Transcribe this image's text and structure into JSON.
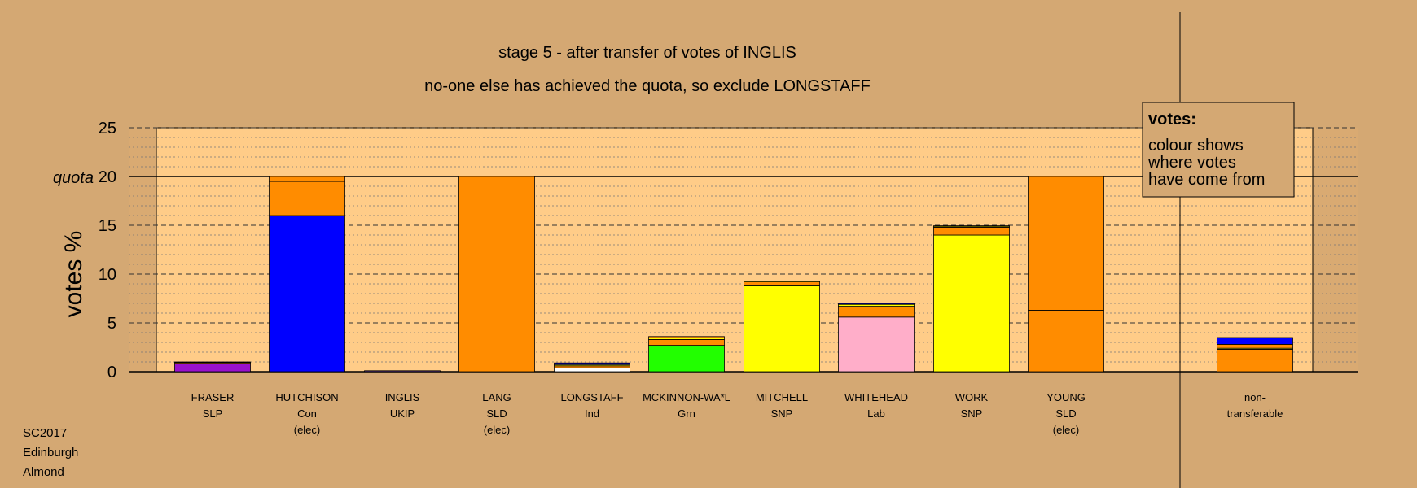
{
  "chart_data": {
    "type": "bar",
    "stacked": true,
    "title": "stage 5 - after transfer of votes of INGLIS",
    "subtitle": "no-one else has achieved the quota, so exclude LONGSTAFF",
    "ylabel": "votes %",
    "ylim": [
      0,
      25
    ],
    "yticks": [
      0,
      5,
      10,
      15,
      20,
      25
    ],
    "quota": 20,
    "quota_label": "quota",
    "grid": true,
    "legend": {
      "title": "votes:",
      "lines": [
        "colour shows",
        "where votes",
        "have come from"
      ],
      "placement": "top-right"
    },
    "footer": [
      "SC2017",
      "Edinburgh",
      "Almond"
    ],
    "colors": {
      "background": "#d4a873",
      "plot_area": "#ffcc88",
      "SLP": "#9911cc",
      "Con": "#0000ff",
      "SLD": "#ff8c00",
      "Ind": "#ffffff",
      "Grn": "#22ff00",
      "SNP": "#ffff00",
      "Lab": "#ffaec9",
      "UKIP": "#6b3fa0"
    },
    "candidates": [
      {
        "name": "FRASER",
        "party": "SLP",
        "status": "",
        "segments": [
          {
            "color": "#9911cc",
            "value": 0.8
          },
          {
            "color": "#ff8c00",
            "value": 0.1
          },
          {
            "color": "#ffff00",
            "value": 0.05
          },
          {
            "color": "#0000ff",
            "value": 0.05
          }
        ]
      },
      {
        "name": "HUTCHISON",
        "party": "Con",
        "status": "(elec)",
        "segments": [
          {
            "color": "#0000ff",
            "value": 16.0
          },
          {
            "color": "#ff8c00",
            "value": 3.5
          },
          {
            "color": "#ff8c00",
            "value": 0.5
          }
        ]
      },
      {
        "name": "INGLIS",
        "party": "UKIP",
        "status": "",
        "segments": [
          {
            "color": "#6b3fa0",
            "value": 0.1
          }
        ]
      },
      {
        "name": "LANG",
        "party": "SLD",
        "status": "(elec)",
        "segments": [
          {
            "color": "#ff8c00",
            "value": 20.0
          }
        ]
      },
      {
        "name": "LONGSTAFF",
        "party": "Ind",
        "status": "",
        "segments": [
          {
            "color": "#ffffff",
            "value": 0.4
          },
          {
            "color": "#ff8c00",
            "value": 0.2
          },
          {
            "color": "#ffff00",
            "value": 0.1
          },
          {
            "color": "#ffffff",
            "value": 0.1
          },
          {
            "color": "#0000ff",
            "value": 0.1
          }
        ]
      },
      {
        "name": "MCKINNON-WA*L",
        "party": "Grn",
        "status": "",
        "segments": [
          {
            "color": "#22ff00",
            "value": 2.7
          },
          {
            "color": "#ff8c00",
            "value": 0.6
          },
          {
            "color": "#ffff00",
            "value": 0.15
          },
          {
            "color": "#ff8c00",
            "value": 0.15
          }
        ]
      },
      {
        "name": "MITCHELL",
        "party": "SNP",
        "status": "",
        "segments": [
          {
            "color": "#ffff00",
            "value": 8.8
          },
          {
            "color": "#ff8c00",
            "value": 0.4
          },
          {
            "color": "#ffff00",
            "value": 0.1
          }
        ]
      },
      {
        "name": "WHITEHEAD",
        "party": "Lab",
        "status": "",
        "segments": [
          {
            "color": "#ffaec9",
            "value": 5.6
          },
          {
            "color": "#ff8c00",
            "value": 1.1
          },
          {
            "color": "#ffff00",
            "value": 0.2
          },
          {
            "color": "#0000ff",
            "value": 0.1
          }
        ]
      },
      {
        "name": "WORK",
        "party": "SNP",
        "status": "",
        "segments": [
          {
            "color": "#ffff00",
            "value": 14.0
          },
          {
            "color": "#ff8c00",
            "value": 0.8
          },
          {
            "color": "#ffff00",
            "value": 0.1
          },
          {
            "color": "#ffaec9",
            "value": 0.05
          }
        ]
      },
      {
        "name": "YOUNG",
        "party": "SLD",
        "status": "(elec)",
        "segments": [
          {
            "color": "#ff8c00",
            "value": 6.3
          },
          {
            "color": "#ff8c00",
            "value": 13.7
          }
        ]
      },
      {
        "name": "non-",
        "party": "transferable",
        "status": "",
        "segments": [
          {
            "color": "#ff8c00",
            "value": 2.3
          },
          {
            "color": "#ffff00",
            "value": 0.1
          },
          {
            "color": "#ff8c00",
            "value": 0.4
          },
          {
            "color": "#0000ff",
            "value": 0.7
          }
        ]
      }
    ]
  }
}
